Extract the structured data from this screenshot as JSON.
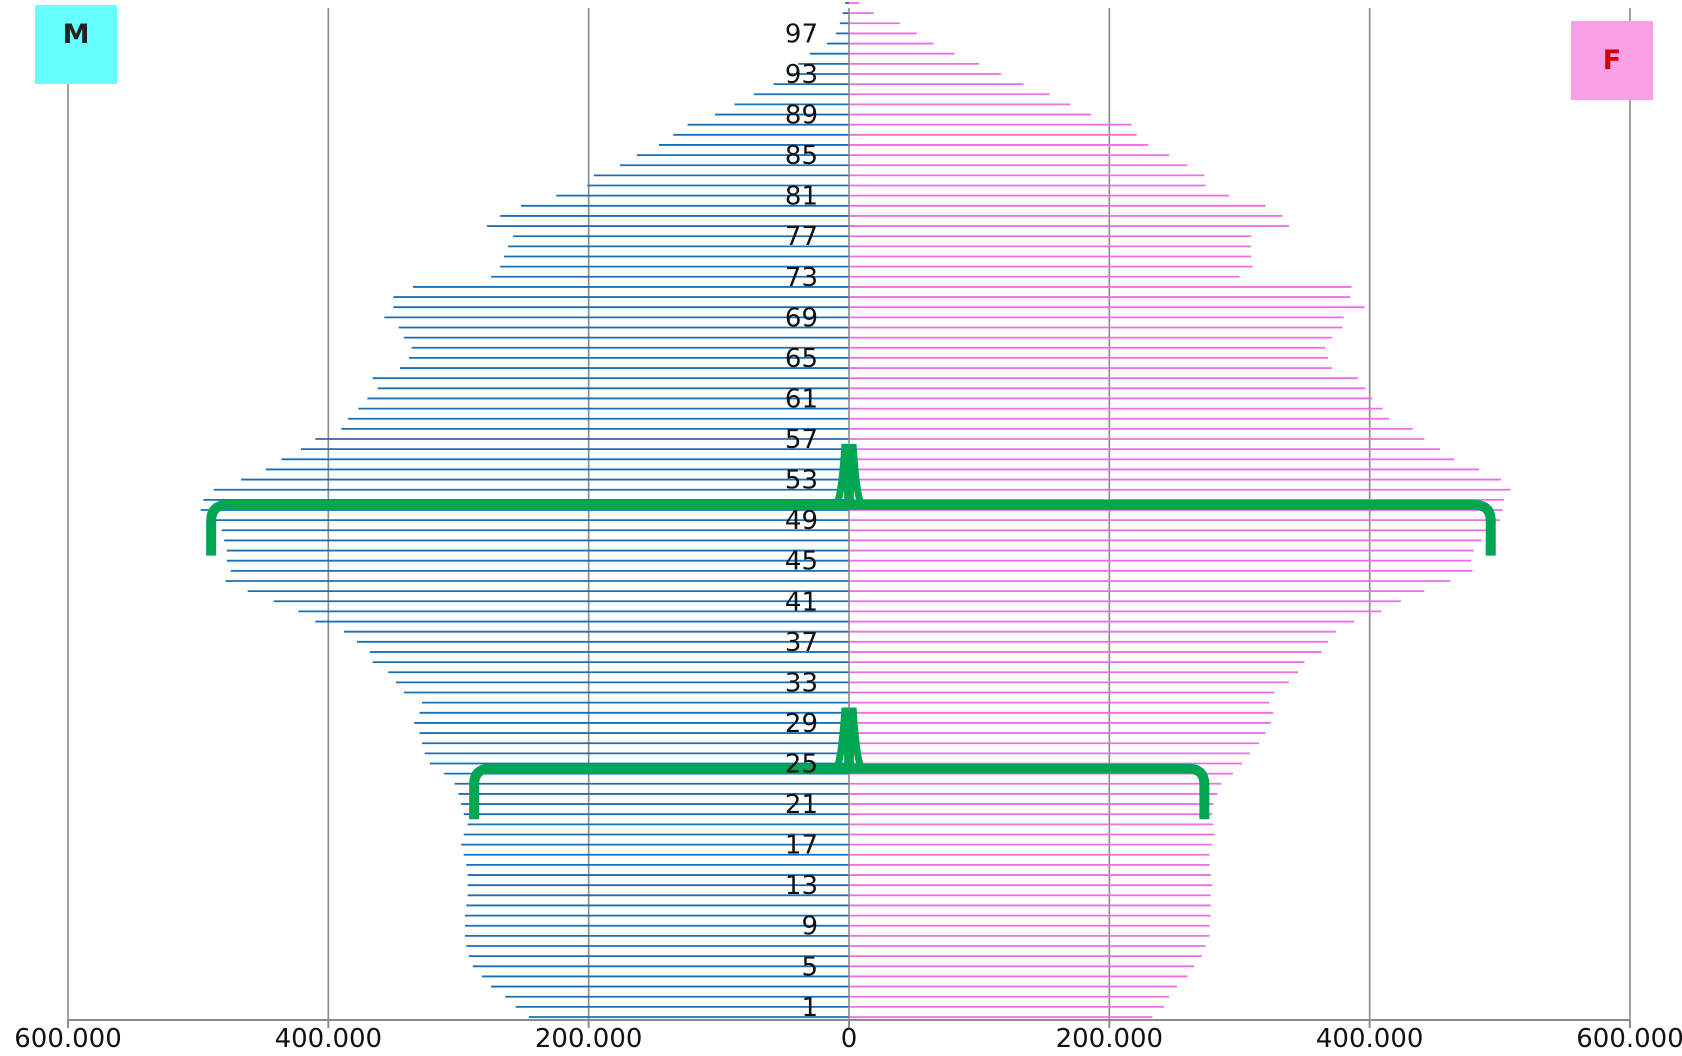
{
  "chart_data": {
    "type": "bar",
    "orientation": "horizontal",
    "subtype": "population-pyramid",
    "x_ticks": [
      "600.000",
      "400.000",
      "200.000",
      "0",
      "200.000",
      "400.000",
      "600.000"
    ],
    "xlim": [
      -600000,
      600000
    ],
    "age_min": 0,
    "age_max": 100,
    "age_labels": [
      "97",
      "93",
      "89",
      "85",
      "81",
      "77",
      "73",
      "69",
      "65",
      "61",
      "57",
      "53",
      "49",
      "45",
      "41",
      "37",
      "33",
      "29",
      "25",
      "21",
      "17",
      "13",
      "9",
      "5",
      "1"
    ],
    "grid": "vertical",
    "legend": {
      "position": "top-left / top-right",
      "male_label": "M",
      "female_label": "F"
    },
    "colors": {
      "male": "#1a6fb5",
      "female": "#ee6ee6",
      "bracket": "#00a651",
      "legend_male_bg": "#66ffff",
      "legend_female_bg": "#f7a0e8",
      "legend_male_text": "#222222",
      "legend_female_text": "#cc0000",
      "grid": "#8a8a8a"
    },
    "series": [
      {
        "name": "M",
        "ages": [
          0,
          1,
          2,
          3,
          4,
          5,
          6,
          7,
          8,
          9,
          10,
          11,
          12,
          13,
          14,
          15,
          16,
          17,
          18,
          19,
          20,
          21,
          22,
          23,
          24,
          25,
          26,
          27,
          28,
          29,
          30,
          31,
          32,
          33,
          34,
          35,
          36,
          37,
          38,
          39,
          40,
          41,
          42,
          43,
          44,
          45,
          46,
          47,
          48,
          49,
          50,
          51,
          52,
          53,
          54,
          55,
          56,
          57,
          58,
          59,
          60,
          61,
          62,
          63,
          64,
          65,
          66,
          67,
          68,
          69,
          70,
          71,
          72,
          73,
          74,
          75,
          76,
          77,
          78,
          79,
          80,
          81,
          82,
          83,
          84,
          85,
          86,
          87,
          88,
          89,
          90,
          91,
          92,
          93,
          94,
          95,
          96,
          97,
          98,
          99,
          100
        ],
        "values": [
          246000,
          256000,
          264000,
          275000,
          282000,
          289000,
          292000,
          294000,
          295000,
          295000,
          295000,
          294000,
          293000,
          293000,
          293000,
          294000,
          296000,
          298000,
          296000,
          293000,
          296000,
          298000,
          300000,
          303000,
          311000,
          322000,
          326000,
          328000,
          330000,
          334000,
          330000,
          328000,
          342000,
          348000,
          354000,
          366000,
          368000,
          378000,
          388000,
          410000,
          423000,
          442000,
          462000,
          479000,
          475000,
          478000,
          478000,
          480000,
          482000,
          492000,
          498000,
          496000,
          488000,
          467000,
          448000,
          436000,
          421000,
          410000,
          390000,
          385000,
          377000,
          370000,
          362000,
          366000,
          345000,
          338000,
          336000,
          342000,
          346000,
          357000,
          350000,
          350000,
          335000,
          275000,
          268000,
          265000,
          262000,
          258000,
          278000,
          268000,
          252000,
          225000,
          201000,
          196000,
          176000,
          163000,
          146000,
          135000,
          124000,
          103000,
          88000,
          73000,
          58000,
          47000,
          39000,
          30000,
          17000,
          10000,
          7000,
          5000,
          3000
        ]
      },
      {
        "name": "F",
        "ages": [
          0,
          1,
          2,
          3,
          4,
          5,
          6,
          7,
          8,
          9,
          10,
          11,
          12,
          13,
          14,
          15,
          16,
          17,
          18,
          19,
          20,
          21,
          22,
          23,
          24,
          25,
          26,
          27,
          28,
          29,
          30,
          31,
          32,
          33,
          34,
          35,
          36,
          37,
          38,
          39,
          40,
          41,
          42,
          43,
          44,
          45,
          46,
          47,
          48,
          49,
          50,
          51,
          52,
          53,
          54,
          55,
          56,
          57,
          58,
          59,
          60,
          61,
          62,
          63,
          64,
          65,
          66,
          67,
          68,
          69,
          70,
          71,
          72,
          73,
          74,
          75,
          76,
          77,
          78,
          79,
          80,
          81,
          82,
          83,
          84,
          85,
          86,
          87,
          88,
          89,
          90,
          91,
          92,
          93,
          94,
          95,
          96,
          97,
          98,
          99,
          100
        ],
        "values": [
          233000,
          242000,
          246000,
          252000,
          260000,
          265000,
          271000,
          274000,
          277000,
          277000,
          278000,
          278000,
          278000,
          279000,
          278000,
          277000,
          277000,
          279000,
          281000,
          280000,
          279000,
          280000,
          283000,
          286000,
          295000,
          302000,
          308000,
          315000,
          320000,
          324000,
          326000,
          323000,
          327000,
          338000,
          345000,
          350000,
          363000,
          368000,
          374000,
          388000,
          409000,
          424000,
          442000,
          462000,
          479000,
          478000,
          480000,
          486000,
          496000,
          500000,
          502000,
          503000,
          508000,
          501000,
          484000,
          465000,
          454000,
          442000,
          433000,
          415000,
          410000,
          402000,
          397000,
          391000,
          371000,
          368000,
          366000,
          371000,
          379000,
          380000,
          396000,
          385000,
          386000,
          300000,
          310000,
          309000,
          309000,
          309000,
          338000,
          333000,
          320000,
          292000,
          274000,
          273000,
          260000,
          246000,
          230000,
          221000,
          217000,
          186000,
          170000,
          154000,
          134000,
          117000,
          100000,
          81000,
          65000,
          52000,
          39000,
          19000,
          8000
        ]
      }
    ],
    "annotations": [
      {
        "type": "bracket",
        "side": "M",
        "age_from": 45.5,
        "age_to": 50.5,
        "value": 490000
      },
      {
        "type": "bracket",
        "side": "F",
        "age_from": 45.5,
        "age_to": 50.5,
        "value": 493000
      },
      {
        "type": "bracket",
        "side": "M",
        "age_from": 19.5,
        "age_to": 24.5,
        "value": 288000
      },
      {
        "type": "bracket",
        "side": "F",
        "age_from": 19.5,
        "age_to": 24.5,
        "value": 273000
      }
    ]
  }
}
